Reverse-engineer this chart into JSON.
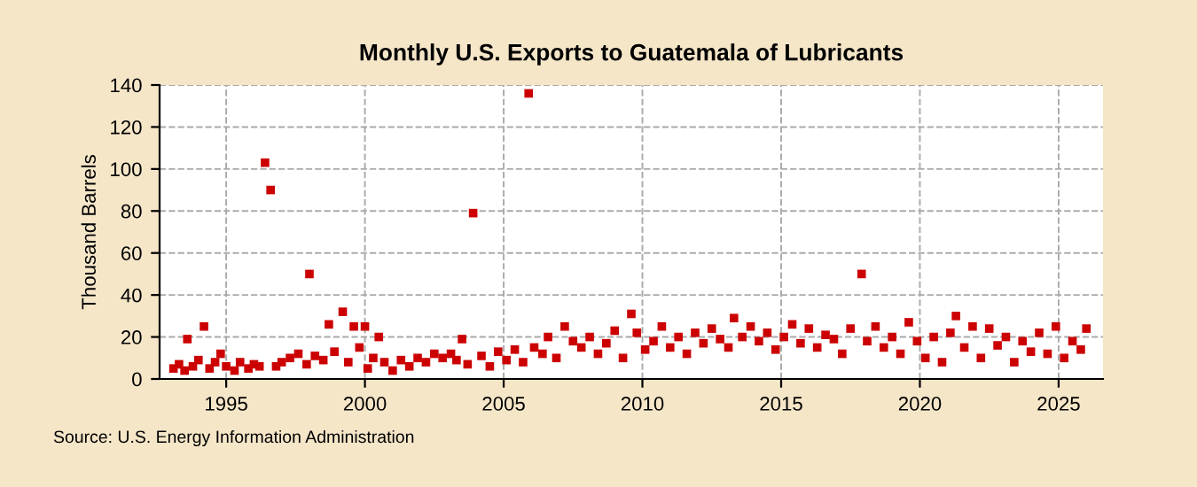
{
  "chart_data": {
    "type": "scatter",
    "title": "Monthly U.S. Exports to Guatemala of Lubricants",
    "ylabel": "Thousand Barrels",
    "x": [
      1993.1,
      1993.3,
      1993.5,
      1993.6,
      1993.8,
      1994.0,
      1994.2,
      1994.4,
      1994.6,
      1994.8,
      1995.0,
      1995.3,
      1995.5,
      1995.8,
      1996.0,
      1996.2,
      1996.4,
      1996.6,
      1996.8,
      1997.0,
      1997.3,
      1997.6,
      1997.9,
      1998.0,
      1998.2,
      1998.5,
      1998.7,
      1998.9,
      1999.2,
      1999.4,
      1999.6,
      1999.8,
      2000.0,
      2000.1,
      2000.3,
      2000.5,
      2000.7,
      2001.0,
      2001.3,
      2001.6,
      2001.9,
      2002.2,
      2002.5,
      2002.8,
      2003.1,
      2003.3,
      2003.5,
      2003.7,
      2003.9,
      2004.2,
      2004.5,
      2004.8,
      2005.1,
      2005.4,
      2005.7,
      2005.9,
      2006.1,
      2006.4,
      2006.6,
      2006.9,
      2007.2,
      2007.5,
      2007.8,
      2008.1,
      2008.4,
      2008.7,
      2009.0,
      2009.3,
      2009.6,
      2009.8,
      2010.1,
      2010.4,
      2010.7,
      2011.0,
      2011.3,
      2011.6,
      2011.9,
      2012.2,
      2012.5,
      2012.8,
      2013.1,
      2013.3,
      2013.6,
      2013.9,
      2014.2,
      2014.5,
      2014.8,
      2015.1,
      2015.4,
      2015.7,
      2016.0,
      2016.3,
      2016.6,
      2016.9,
      2017.2,
      2017.5,
      2017.9,
      2018.1,
      2018.4,
      2018.7,
      2019.0,
      2019.3,
      2019.6,
      2019.9,
      2020.2,
      2020.5,
      2020.8,
      2021.1,
      2021.3,
      2021.6,
      2021.9,
      2022.2,
      2022.5,
      2022.8,
      2023.1,
      2023.4,
      2023.7,
      2024.0,
      2024.3,
      2024.6,
      2024.9,
      2025.2,
      2025.5,
      2025.8,
      2026.0
    ],
    "values": [
      5,
      7,
      4,
      19,
      6,
      9,
      25,
      5,
      8,
      12,
      6,
      4,
      8,
      5,
      7,
      6,
      103,
      90,
      6,
      8,
      10,
      12,
      7,
      50,
      11,
      9,
      26,
      13,
      32,
      8,
      25,
      15,
      25,
      5,
      10,
      20,
      8,
      4,
      9,
      6,
      10,
      8,
      12,
      10,
      12,
      9,
      19,
      7,
      79,
      11,
      6,
      13,
      9,
      14,
      8,
      136,
      15,
      12,
      20,
      10,
      25,
      18,
      15,
      20,
      12,
      17,
      23,
      10,
      31,
      22,
      14,
      18,
      25,
      15,
      20,
      12,
      22,
      17,
      24,
      19,
      15,
      29,
      20,
      25,
      18,
      22,
      14,
      20,
      26,
      17,
      24,
      15,
      21,
      19,
      12,
      24,
      50,
      18,
      25,
      15,
      20,
      12,
      27,
      18,
      10,
      20,
      8,
      22,
      30,
      15,
      25,
      10,
      24,
      16,
      20,
      8,
      18,
      13,
      22,
      12,
      25,
      10,
      18,
      14,
      24
    ],
    "color": "#cc0000",
    "marker": "square",
    "xlim": [
      1992.6,
      2026.6
    ],
    "ylim": [
      0,
      140
    ],
    "xticks": [
      1995,
      2000,
      2005,
      2010,
      2015,
      2020,
      2025
    ],
    "yticks": [
      0,
      20,
      40,
      60,
      80,
      100,
      120,
      140
    ],
    "grid": true,
    "annotations": [
      "Source: U.S. Energy Information Administration"
    ]
  }
}
